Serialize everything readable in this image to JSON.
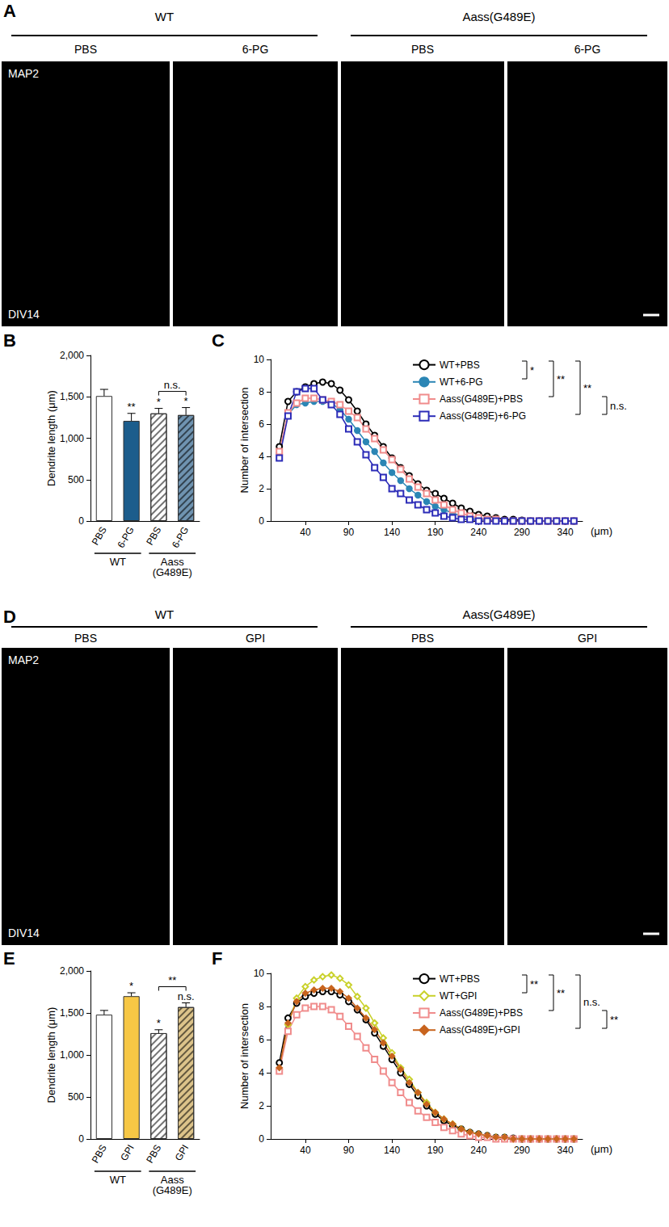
{
  "image_panels": [
    {
      "panel": "A",
      "groups": [
        {
          "label": "WT",
          "items": [
            "PBS",
            "6-PG"
          ]
        },
        {
          "label": "Aass(G489E)",
          "items": [
            "PBS",
            "6-PG"
          ]
        }
      ],
      "stain": "MAP2",
      "timepoint": "DIV14"
    },
    {
      "panel": "D",
      "groups": [
        {
          "label": "WT",
          "items": [
            "PBS",
            "GPI"
          ]
        },
        {
          "label": "Aass(G489E)",
          "items": [
            "PBS",
            "GPI"
          ]
        }
      ],
      "stain": "MAP2",
      "timepoint": "DIV14"
    }
  ],
  "chart_data": [
    {
      "panel": "B",
      "type": "bar",
      "categories": [
        "PBS",
        "6-PG",
        "PBS",
        "6-PG"
      ],
      "groups": [
        {
          "label": "WT",
          "members": [
            0,
            1
          ]
        },
        {
          "label": "Aass\n(G489E)",
          "members": [
            2,
            3
          ]
        }
      ],
      "values": [
        1510,
        1210,
        1300,
        1280
      ],
      "errors": [
        80,
        90,
        60,
        90
      ],
      "colors": [
        "#ffffff",
        "#1c5d8c",
        "#ffffff",
        "#6f93b0"
      ],
      "significance": [
        null,
        "**",
        "*",
        "*"
      ],
      "brackets": [
        {
          "from": 2,
          "to": 3,
          "label": "n.s."
        }
      ],
      "ylabel": "Dendrite length (μm)",
      "ylim": [
        0,
        2000
      ],
      "yticks": [
        0,
        500,
        1000,
        1500,
        2000
      ]
    },
    {
      "panel": "C",
      "type": "line",
      "x": [
        10,
        20,
        30,
        40,
        50,
        60,
        70,
        80,
        90,
        100,
        110,
        120,
        130,
        140,
        150,
        160,
        170,
        180,
        190,
        200,
        210,
        220,
        230,
        240,
        250,
        260,
        270,
        280,
        290,
        300,
        310,
        320,
        330,
        340,
        350
      ],
      "xlim": [
        0,
        360
      ],
      "xticks": [
        40,
        90,
        140,
        190,
        240,
        290,
        340
      ],
      "xlabel": "(μm)",
      "ylabel": "Number of intersection",
      "ylim": [
        0,
        10
      ],
      "yticks": [
        0,
        2,
        4,
        6,
        8,
        10
      ],
      "legend": "top-right",
      "series": [
        {
          "name": "WT+PBS",
          "color": "#000000",
          "marker": "emptyCircle",
          "values": [
            4.6,
            7.4,
            8.0,
            8.3,
            8.5,
            8.6,
            8.5,
            8.1,
            7.5,
            6.8,
            6.0,
            5.3,
            4.6,
            3.9,
            3.3,
            2.8,
            2.3,
            1.9,
            1.7,
            1.4,
            1.1,
            0.8,
            0.6,
            0.4,
            0.3,
            0.2,
            0.1,
            0.1,
            0.05,
            0,
            0,
            0,
            0,
            0,
            0
          ]
        },
        {
          "name": "WT+6-PG",
          "color": "#2b86b5",
          "marker": "circle",
          "values": [
            4.2,
            6.6,
            7.2,
            7.3,
            7.4,
            7.4,
            7.3,
            6.9,
            6.3,
            5.6,
            4.9,
            4.3,
            3.6,
            3.0,
            2.5,
            2.0,
            1.6,
            1.2,
            0.9,
            0.7,
            0.5,
            0.3,
            0.2,
            0.1,
            0.1,
            0,
            0,
            0,
            0,
            0,
            0,
            0,
            0,
            0,
            0
          ]
        },
        {
          "name": "Aass(G489E)+PBS",
          "color": "#f08c8c",
          "marker": "emptyRect",
          "values": [
            4.3,
            6.7,
            7.3,
            7.6,
            7.6,
            7.5,
            7.4,
            7.2,
            6.8,
            6.4,
            5.7,
            5.1,
            4.4,
            3.8,
            3.2,
            2.6,
            2.1,
            1.7,
            1.3,
            1.0,
            0.7,
            0.5,
            0.3,
            0.2,
            0.1,
            0.1,
            0,
            0,
            0,
            0,
            0,
            0,
            0,
            0,
            0
          ]
        },
        {
          "name": "Aass(G489E)+6-PG",
          "color": "#2c2cb8",
          "marker": "emptyRect",
          "values": [
            3.9,
            6.5,
            8.0,
            8.2,
            8.2,
            7.5,
            7.2,
            6.6,
            5.7,
            4.9,
            4.1,
            3.3,
            2.7,
            2.0,
            1.7,
            1.3,
            1.0,
            0.7,
            0.5,
            0.3,
            0.2,
            0.1,
            0.1,
            0,
            0,
            0,
            0,
            0,
            0,
            0,
            0,
            0,
            0,
            0,
            0
          ]
        }
      ],
      "comparisons": [
        {
          "a": 0,
          "b": 1,
          "label": "*"
        },
        {
          "a": 0,
          "b": 2,
          "label": "**"
        },
        {
          "a": 0,
          "b": 3,
          "label": "**"
        },
        {
          "a": 2,
          "b": 3,
          "label": "n.s."
        }
      ]
    },
    {
      "panel": "E",
      "type": "bar",
      "categories": [
        "PBS",
        "GPI",
        "PBS",
        "GPI"
      ],
      "groups": [
        {
          "label": "WT",
          "members": [
            0,
            1
          ]
        },
        {
          "label": "Aass\n(G489E)",
          "members": [
            2,
            3
          ]
        }
      ],
      "values": [
        1480,
        1700,
        1260,
        1570
      ],
      "errors": [
        50,
        40,
        40,
        50
      ],
      "colors": [
        "#ffffff",
        "#f7c745",
        "#ffffff",
        "#dcc38a"
      ],
      "significance": [
        null,
        "*",
        "*",
        "n.s."
      ],
      "brackets": [
        {
          "from": 2,
          "to": 3,
          "label": "**"
        }
      ],
      "ylabel": "Dendrite length (μm)",
      "ylim": [
        0,
        2000
      ],
      "yticks": [
        0,
        500,
        1000,
        1500,
        2000
      ]
    },
    {
      "panel": "F",
      "type": "line",
      "x": [
        10,
        20,
        30,
        40,
        50,
        60,
        70,
        80,
        90,
        100,
        110,
        120,
        130,
        140,
        150,
        160,
        170,
        180,
        190,
        200,
        210,
        220,
        230,
        240,
        250,
        260,
        270,
        280,
        290,
        300,
        310,
        320,
        330,
        340,
        350
      ],
      "xlim": [
        0,
        360
      ],
      "xticks": [
        40,
        90,
        140,
        190,
        240,
        290,
        340
      ],
      "xlabel": "(μm)",
      "ylabel": "Number of intersection",
      "ylim": [
        0,
        10
      ],
      "yticks": [
        0,
        2,
        4,
        6,
        8,
        10
      ],
      "legend": "top-right",
      "series": [
        {
          "name": "WT+PBS",
          "color": "#000000",
          "marker": "emptyCircle",
          "values": [
            4.6,
            7.3,
            8.2,
            8.6,
            8.8,
            8.9,
            8.9,
            8.7,
            8.3,
            7.8,
            7.2,
            6.4,
            5.6,
            4.8,
            4.0,
            3.3,
            2.6,
            2.0,
            1.5,
            1.1,
            0.8,
            0.6,
            0.4,
            0.3,
            0.2,
            0.1,
            0.1,
            0.05,
            0,
            0,
            0,
            0,
            0,
            0,
            0
          ]
        },
        {
          "name": "WT+GPI",
          "color": "#c9d12b",
          "marker": "emptyDiamond",
          "values": [
            4.2,
            6.9,
            8.5,
            9.2,
            9.6,
            9.8,
            9.9,
            9.7,
            9.3,
            8.6,
            7.9,
            7.0,
            6.1,
            5.2,
            4.3,
            3.6,
            2.8,
            2.2,
            1.6,
            1.2,
            0.9,
            0.6,
            0.4,
            0.3,
            0.2,
            0.1,
            0.1,
            0,
            0,
            0,
            0,
            0,
            0,
            0,
            0
          ]
        },
        {
          "name": "Aass(G489E)+PBS",
          "color": "#f08c8c",
          "marker": "emptyRect",
          "values": [
            4.1,
            6.5,
            7.5,
            7.9,
            8.0,
            8.0,
            7.8,
            7.4,
            6.8,
            6.2,
            5.5,
            4.8,
            4.1,
            3.4,
            2.8,
            2.2,
            1.7,
            1.3,
            1.0,
            0.7,
            0.5,
            0.3,
            0.2,
            0.1,
            0.1,
            0,
            0,
            0,
            0,
            0,
            0,
            0,
            0,
            0,
            0
          ]
        },
        {
          "name": "Aass(G489E)+GPI",
          "color": "#c8641e",
          "marker": "diamond",
          "values": [
            4.3,
            7.0,
            8.3,
            8.8,
            9.0,
            9.1,
            9.1,
            8.9,
            8.5,
            7.9,
            7.3,
            6.6,
            5.8,
            5.0,
            4.2,
            3.4,
            2.8,
            2.1,
            1.6,
            1.2,
            0.9,
            0.6,
            0.4,
            0.3,
            0.2,
            0.1,
            0.1,
            0,
            0,
            0,
            0,
            0,
            0,
            0,
            0
          ]
        }
      ],
      "comparisons": [
        {
          "a": 0,
          "b": 1,
          "label": "**"
        },
        {
          "a": 0,
          "b": 2,
          "label": "**"
        },
        {
          "a": 0,
          "b": 3,
          "label": "n.s."
        },
        {
          "a": 2,
          "b": 3,
          "label": "**"
        }
      ]
    }
  ]
}
